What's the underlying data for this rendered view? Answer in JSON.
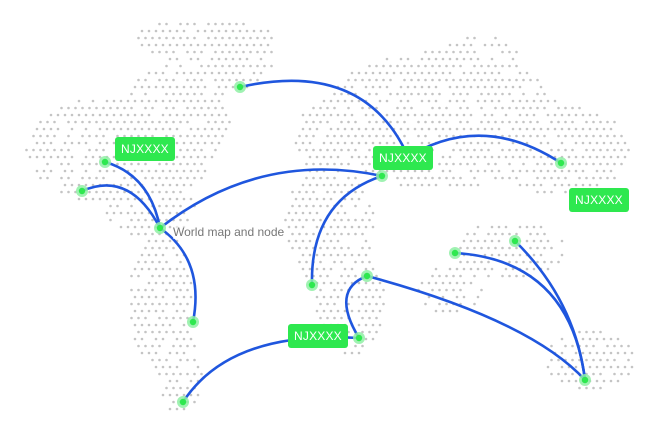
{
  "caption": "World map and node",
  "labels": [
    "NJXXXX",
    "NJXXXX",
    "NJXXXX",
    "NJXXXX"
  ],
  "colors": {
    "link": "#1f56de",
    "node": "#2ee84f",
    "node_glow": "#8ff0a4",
    "dot": "#c4c4c4"
  }
}
